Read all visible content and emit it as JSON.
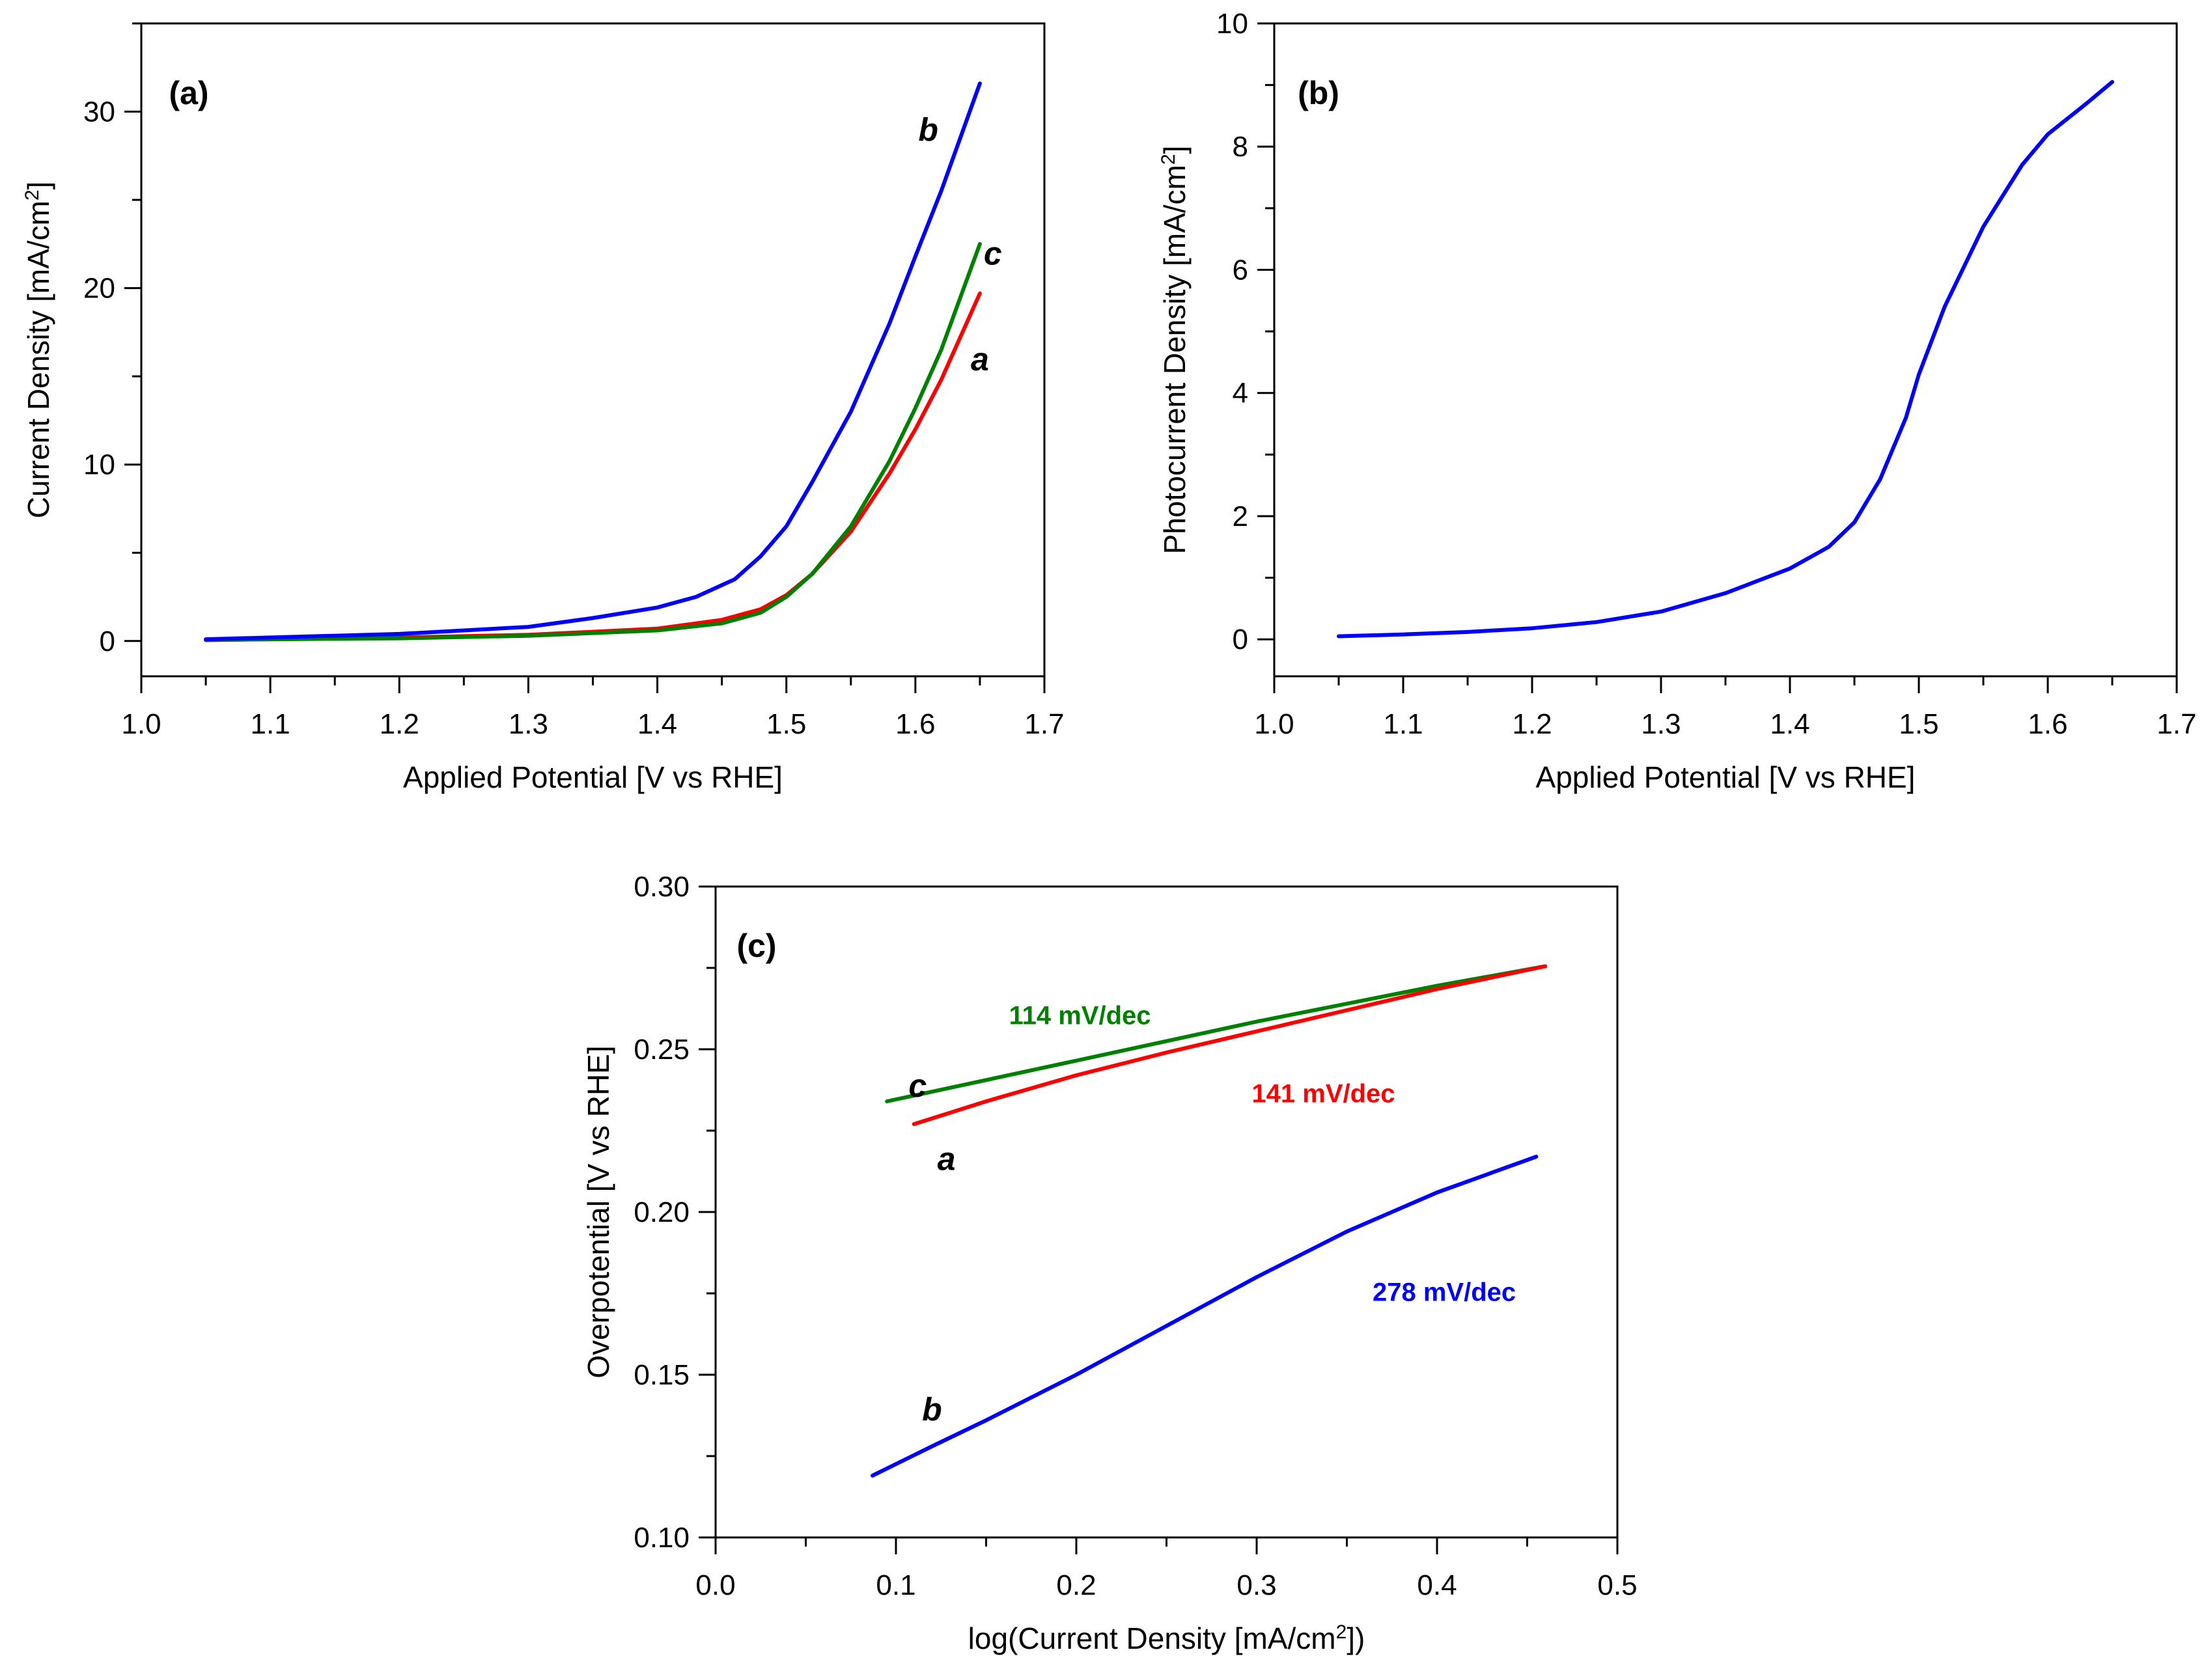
{
  "chart_data": [
    {
      "id": "a",
      "type": "line",
      "panel_label": "(a)",
      "xlabel": "Applied Potential [V vs RHE]",
      "ylabel": "Current Density [mA/cm",
      "ylabel_sup": "2",
      "ylabel_end": "]",
      "xlim": [
        1.0,
        1.7
      ],
      "ylim": [
        -2,
        35
      ],
      "xticks": [
        1.0,
        1.1,
        1.2,
        1.3,
        1.4,
        1.5,
        1.6,
        1.7
      ],
      "xtick_labels": [
        "1.0",
        "1.1",
        "1.2",
        "1.3",
        "1.4",
        "1.5",
        "1.6",
        "1.7"
      ],
      "yticks": [
        0,
        10,
        20,
        30
      ],
      "ytick_labels": [
        "0",
        "10",
        "20",
        "30"
      ],
      "series": [
        {
          "name": "a",
          "color": "#ff0000",
          "x": [
            1.05,
            1.1,
            1.2,
            1.3,
            1.4,
            1.45,
            1.48,
            1.5,
            1.52,
            1.55,
            1.58,
            1.6,
            1.62,
            1.65
          ],
          "y": [
            0.05,
            0.1,
            0.2,
            0.35,
            0.7,
            1.2,
            1.8,
            2.6,
            3.8,
            6.2,
            9.5,
            12.0,
            14.8,
            19.7
          ]
        },
        {
          "name": "c",
          "color": "#008000",
          "x": [
            1.05,
            1.1,
            1.2,
            1.3,
            1.4,
            1.45,
            1.48,
            1.5,
            1.52,
            1.55,
            1.58,
            1.6,
            1.62,
            1.65
          ],
          "y": [
            0.05,
            0.1,
            0.15,
            0.3,
            0.6,
            1.0,
            1.6,
            2.5,
            3.8,
            6.5,
            10.2,
            13.2,
            16.5,
            22.5
          ]
        },
        {
          "name": "b",
          "color": "#0000ff",
          "x": [
            1.05,
            1.1,
            1.2,
            1.3,
            1.35,
            1.4,
            1.43,
            1.46,
            1.48,
            1.5,
            1.52,
            1.55,
            1.58,
            1.6,
            1.62,
            1.65
          ],
          "y": [
            0.1,
            0.2,
            0.4,
            0.8,
            1.3,
            1.9,
            2.5,
            3.5,
            4.8,
            6.5,
            9.0,
            13.0,
            18.0,
            21.8,
            25.5,
            31.6
          ]
        }
      ],
      "annotations": [
        {
          "text": "b",
          "x": 1.61,
          "y": 29.0
        },
        {
          "text": "c",
          "x": 1.66,
          "y": 22.0
        },
        {
          "text": "a",
          "x": 1.65,
          "y": 16.0
        }
      ]
    },
    {
      "id": "b",
      "type": "line",
      "panel_label": "(b)",
      "xlabel": "Applied Potential [V vs RHE]",
      "ylabel": "Photocurrent Density [mA/cm",
      "ylabel_sup": "2",
      "ylabel_end": "]",
      "xlim": [
        1.0,
        1.7
      ],
      "ylim": [
        -0.6,
        10
      ],
      "xticks": [
        1.0,
        1.1,
        1.2,
        1.3,
        1.4,
        1.5,
        1.6,
        1.7
      ],
      "xtick_labels": [
        "1.0",
        "1.1",
        "1.2",
        "1.3",
        "1.4",
        "1.5",
        "1.6",
        "1.7"
      ],
      "yticks": [
        0,
        2,
        4,
        6,
        8,
        10
      ],
      "ytick_labels": [
        "0",
        "2",
        "4",
        "6",
        "8",
        "10"
      ],
      "series": [
        {
          "name": "photocurrent",
          "color": "#0000ff",
          "x": [
            1.05,
            1.1,
            1.15,
            1.2,
            1.25,
            1.3,
            1.35,
            1.4,
            1.43,
            1.45,
            1.47,
            1.49,
            1.5,
            1.52,
            1.55,
            1.58,
            1.6,
            1.63,
            1.65
          ],
          "y": [
            0.05,
            0.08,
            0.12,
            0.18,
            0.28,
            0.45,
            0.75,
            1.15,
            1.5,
            1.9,
            2.6,
            3.6,
            4.3,
            5.4,
            6.7,
            7.7,
            8.2,
            8.7,
            9.05
          ]
        }
      ],
      "annotations": []
    },
    {
      "id": "c",
      "type": "line",
      "panel_label": "(c)",
      "xlabel": "log(Current Density [mA/cm",
      "xlabel_sup": "2",
      "xlabel_end": "])",
      "ylabel": "Overpotential [V vs RHE]",
      "xlim": [
        0.0,
        0.5
      ],
      "ylim": [
        0.1,
        0.3
      ],
      "xticks": [
        0.0,
        0.1,
        0.2,
        0.3,
        0.4,
        0.5
      ],
      "xtick_labels": [
        "0.0",
        "0.1",
        "0.2",
        "0.3",
        "0.4",
        "0.5"
      ],
      "yticks": [
        0.1,
        0.15,
        0.2,
        0.25,
        0.3
      ],
      "ytick_labels": [
        "0.10",
        "0.15",
        "0.20",
        "0.25",
        "0.30"
      ],
      "series": [
        {
          "name": "c",
          "color": "#008000",
          "x": [
            0.095,
            0.2,
            0.3,
            0.4,
            0.46
          ],
          "y": [
            0.234,
            0.2465,
            0.2585,
            0.2695,
            0.2755
          ]
        },
        {
          "name": "a",
          "color": "#ff0000",
          "x": [
            0.11,
            0.15,
            0.2,
            0.25,
            0.3,
            0.35,
            0.4,
            0.46
          ],
          "y": [
            0.227,
            0.234,
            0.242,
            0.249,
            0.2555,
            0.262,
            0.2685,
            0.2755
          ]
        },
        {
          "name": "b",
          "color": "#0000ff",
          "x": [
            0.087,
            0.12,
            0.15,
            0.2,
            0.25,
            0.3,
            0.35,
            0.4,
            0.455
          ],
          "y": [
            0.119,
            0.128,
            0.136,
            0.15,
            0.165,
            0.18,
            0.194,
            0.206,
            0.217
          ]
        }
      ],
      "annotations": [
        {
          "text": "c",
          "x": 0.112,
          "y": 0.239
        },
        {
          "text": "a",
          "x": 0.128,
          "y": 0.2165
        },
        {
          "text": "b",
          "x": 0.12,
          "y": 0.1395
        }
      ],
      "slope_labels": [
        {
          "text": "114 mV/dec",
          "x": 0.202,
          "y": 0.2605,
          "color": "#008000"
        },
        {
          "text": "141 mV/dec",
          "x": 0.337,
          "y": 0.2365,
          "color": "#ff0000"
        },
        {
          "text": "278 mV/dec",
          "x": 0.404,
          "y": 0.1755,
          "color": "#0000ff"
        }
      ]
    }
  ]
}
